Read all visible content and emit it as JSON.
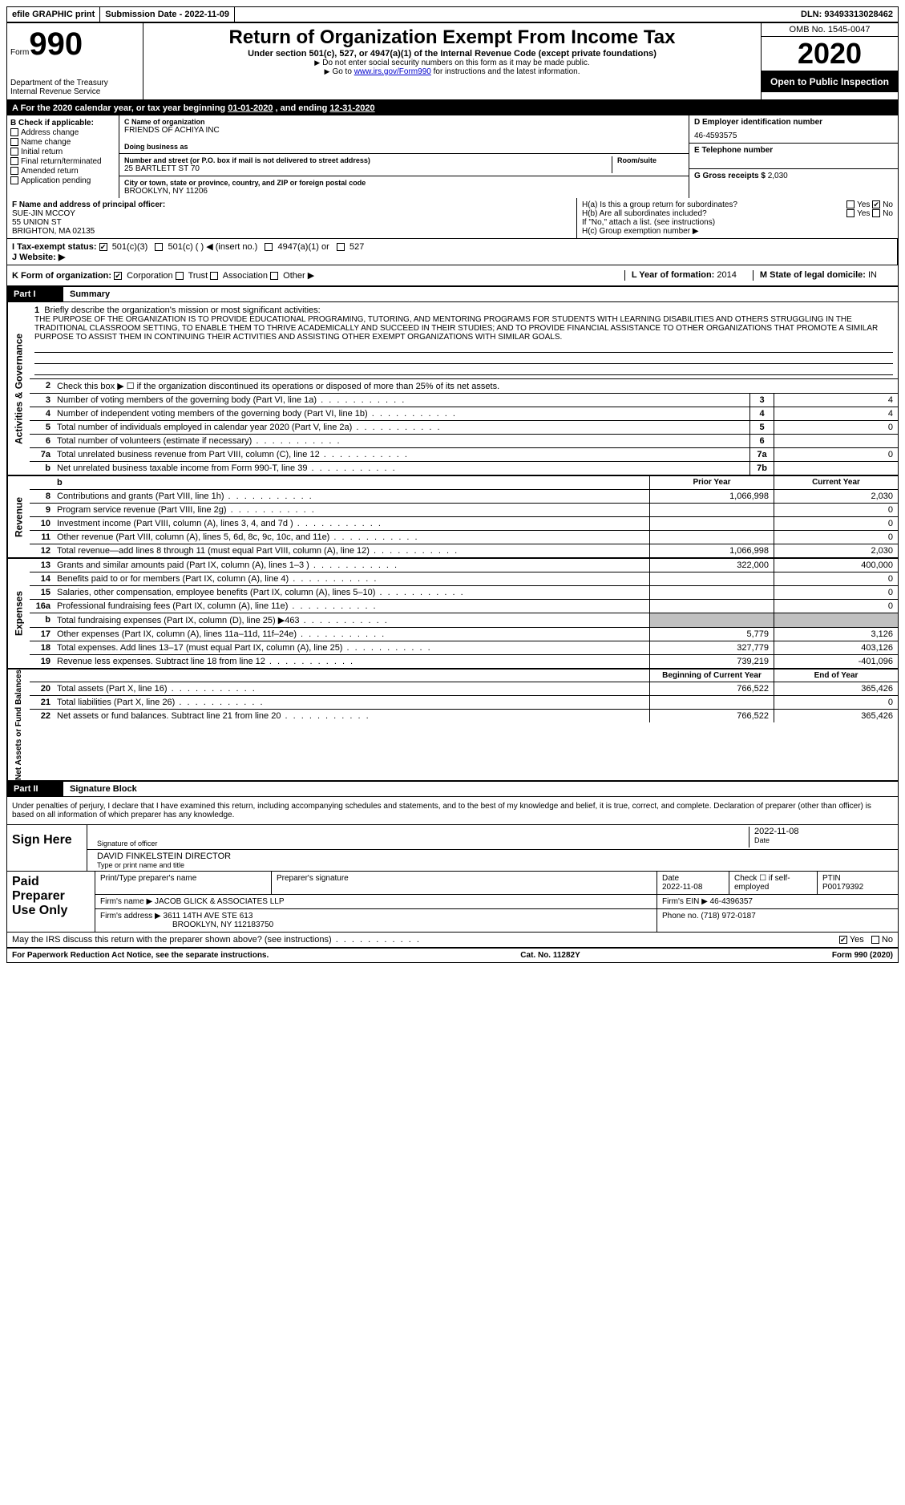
{
  "topbar": {
    "efile": "efile GRAPHIC print",
    "submission_label": "Submission Date - ",
    "submission_date": "2022-11-09",
    "dln_label": "DLN: ",
    "dln": "93493313028462"
  },
  "header": {
    "form_word": "Form",
    "form_num": "990",
    "dept": "Department of the Treasury\nInternal Revenue Service",
    "title": "Return of Organization Exempt From Income Tax",
    "subtitle": "Under section 501(c), 527, or 4947(a)(1) of the Internal Revenue Code (except private foundations)",
    "note1": "Do not enter social security numbers on this form as it may be made public.",
    "note2_pre": "Go to ",
    "note2_link": "www.irs.gov/Form990",
    "note2_post": " for instructions and the latest information.",
    "omb": "OMB No. 1545-0047",
    "year": "2020",
    "open": "Open to Public Inspection"
  },
  "period": {
    "a_label": "A For the 2020 calendar year, or tax year beginning ",
    "begin": "01-01-2020",
    "mid": " , and ending ",
    "end": "12-31-2020"
  },
  "boxB": {
    "label": "B Check if applicable:",
    "items": [
      "Address change",
      "Name change",
      "Initial return",
      "Final return/terminated",
      "Amended return",
      "Application pending"
    ]
  },
  "boxC": {
    "name_label": "C Name of organization",
    "name": "FRIENDS OF ACHIYA INC",
    "dba_label": "Doing business as",
    "street_label": "Number and street (or P.O. box if mail is not delivered to street address)",
    "street": "25 BARTLETT ST 70",
    "room_label": "Room/suite",
    "city_label": "City or town, state or province, country, and ZIP or foreign postal code",
    "city": "BROOKLYN, NY  11206"
  },
  "boxD": {
    "label": "D Employer identification number",
    "value": "46-4593575"
  },
  "boxE": {
    "label": "E Telephone number",
    "value": ""
  },
  "boxG": {
    "label": "G Gross receipts $",
    "value": "2,030"
  },
  "boxF": {
    "label": "F Name and address of principal officer:",
    "name": "SUE-JIN MCCOY",
    "addr1": "55 UNION ST",
    "addr2": "BRIGHTON, MA  02135"
  },
  "boxH": {
    "ha": "H(a) Is this a group return for subordinates?",
    "hb": "H(b) Are all subordinates included?",
    "hb_note": "If \"No,\" attach a list. (see instructions)",
    "hc": "H(c) Group exemption number ▶",
    "yes": "Yes",
    "no": "No"
  },
  "boxI": {
    "label": "I Tax-exempt status:",
    "opts": [
      "501(c)(3)",
      "501(c) (  ) ◀ (insert no.)",
      "4947(a)(1) or",
      "527"
    ]
  },
  "boxJ": {
    "label": "J Website: ▶",
    "value": ""
  },
  "boxK": {
    "label": "K Form of organization:",
    "opts": [
      "Corporation",
      "Trust",
      "Association",
      "Other ▶"
    ]
  },
  "boxL": {
    "label": "L Year of formation:",
    "value": "2014"
  },
  "boxM": {
    "label": "M State of legal domicile:",
    "value": "IN"
  },
  "partI": {
    "header": "Part I",
    "title": "Summary",
    "line1_label": "Briefly describe the organization's mission or most significant activities:",
    "mission": "THE PURPOSE OF THE ORGANIZATION IS TO PROVIDE EDUCATIONAL PROGRAMING, TUTORING, AND MENTORING PROGRAMS FOR STUDENTS WITH LEARNING DISABILITIES AND OTHERS STRUGGLING IN THE TRADITIONAL CLASSROOM SETTING, TO ENABLE THEM TO THRIVE ACADEMICALLY AND SUCCEED IN THEIR STUDIES; AND TO PROVIDE FINANCIAL ASSISTANCE TO OTHER ORGANIZATIONS THAT PROMOTE A SIMILAR PURPOSE TO ASSIST THEM IN CONTINUING THEIR ACTIVITIES AND ASSISTING OTHER EXEMPT ORGANIZATIONS WITH SIMILAR GOALS.",
    "line2": "Check this box ▶ ☐ if the organization discontinued its operations or disposed of more than 25% of its net assets.",
    "sections": {
      "activities": "Activities & Governance",
      "revenue": "Revenue",
      "expenses": "Expenses",
      "netassets": "Net Assets or Fund Balances"
    },
    "cols": {
      "prior": "Prior Year",
      "current": "Current Year",
      "begin": "Beginning of Current Year",
      "end": "End of Year"
    },
    "lines_gov": [
      {
        "n": "3",
        "t": "Number of voting members of the governing body (Part VI, line 1a)",
        "box": "3",
        "v": "4"
      },
      {
        "n": "4",
        "t": "Number of independent voting members of the governing body (Part VI, line 1b)",
        "box": "4",
        "v": "4"
      },
      {
        "n": "5",
        "t": "Total number of individuals employed in calendar year 2020 (Part V, line 2a)",
        "box": "5",
        "v": "0"
      },
      {
        "n": "6",
        "t": "Total number of volunteers (estimate if necessary)",
        "box": "6",
        "v": ""
      },
      {
        "n": "7a",
        "t": "Total unrelated business revenue from Part VIII, column (C), line 12",
        "box": "7a",
        "v": "0"
      },
      {
        "n": "b",
        "t": "Net unrelated business taxable income from Form 990-T, line 39",
        "box": "7b",
        "v": ""
      }
    ],
    "lines_rev": [
      {
        "n": "8",
        "t": "Contributions and grants (Part VIII, line 1h)",
        "p": "1,066,998",
        "c": "2,030"
      },
      {
        "n": "9",
        "t": "Program service revenue (Part VIII, line 2g)",
        "p": "",
        "c": "0"
      },
      {
        "n": "10",
        "t": "Investment income (Part VIII, column (A), lines 3, 4, and 7d )",
        "p": "",
        "c": "0"
      },
      {
        "n": "11",
        "t": "Other revenue (Part VIII, column (A), lines 5, 6d, 8c, 9c, 10c, and 11e)",
        "p": "",
        "c": "0"
      },
      {
        "n": "12",
        "t": "Total revenue—add lines 8 through 11 (must equal Part VIII, column (A), line 12)",
        "p": "1,066,998",
        "c": "2,030"
      }
    ],
    "lines_exp": [
      {
        "n": "13",
        "t": "Grants and similar amounts paid (Part IX, column (A), lines 1–3 )",
        "p": "322,000",
        "c": "400,000"
      },
      {
        "n": "14",
        "t": "Benefits paid to or for members (Part IX, column (A), line 4)",
        "p": "",
        "c": "0"
      },
      {
        "n": "15",
        "t": "Salaries, other compensation, employee benefits (Part IX, column (A), lines 5–10)",
        "p": "",
        "c": "0"
      },
      {
        "n": "16a",
        "t": "Professional fundraising fees (Part IX, column (A), line 11e)",
        "p": "",
        "c": "0"
      },
      {
        "n": "b",
        "t": "Total fundraising expenses (Part IX, column (D), line 25) ▶463",
        "p": "SHADE",
        "c": "SHADE"
      },
      {
        "n": "17",
        "t": "Other expenses (Part IX, column (A), lines 11a–11d, 11f–24e)",
        "p": "5,779",
        "c": "3,126"
      },
      {
        "n": "18",
        "t": "Total expenses. Add lines 13–17 (must equal Part IX, column (A), line 25)",
        "p": "327,779",
        "c": "403,126"
      },
      {
        "n": "19",
        "t": "Revenue less expenses. Subtract line 18 from line 12",
        "p": "739,219",
        "c": "-401,096"
      }
    ],
    "lines_net": [
      {
        "n": "20",
        "t": "Total assets (Part X, line 16)",
        "p": "766,522",
        "c": "365,426"
      },
      {
        "n": "21",
        "t": "Total liabilities (Part X, line 26)",
        "p": "",
        "c": "0"
      },
      {
        "n": "22",
        "t": "Net assets or fund balances. Subtract line 21 from line 20",
        "p": "766,522",
        "c": "365,426"
      }
    ]
  },
  "partII": {
    "header": "Part II",
    "title": "Signature Block",
    "declaration": "Under penalties of perjury, I declare that I have examined this return, including accompanying schedules and statements, and to the best of my knowledge and belief, it is true, correct, and complete. Declaration of preparer (other than officer) is based on all information of which preparer has any knowledge.",
    "sign_here": "Sign Here",
    "sig_officer": "Signature of officer",
    "sig_date": "2022-11-08",
    "date_label": "Date",
    "officer_name": "DAVID FINKELSTEIN DIRECTOR",
    "type_name": "Type or print name and title",
    "paid_prep": "Paid Preparer Use Only",
    "prep_name_label": "Print/Type preparer's name",
    "prep_sig_label": "Preparer's signature",
    "prep_date_label": "Date",
    "prep_date": "2022-11-08",
    "self_emp": "Check ☐ if self-employed",
    "ptin_label": "PTIN",
    "ptin": "P00179392",
    "firm_name_label": "Firm's name    ▶",
    "firm_name": "JACOB GLICK & ASSOCIATES LLP",
    "firm_ein_label": "Firm's EIN ▶",
    "firm_ein": "46-4396357",
    "firm_addr_label": "Firm's address ▶",
    "firm_addr1": "3611 14TH AVE STE 613",
    "firm_addr2": "BROOKLYN, NY  112183750",
    "phone_label": "Phone no.",
    "phone": "(718) 972-0187",
    "discuss": "May the IRS discuss this return with the preparer shown above? (see instructions)",
    "yes": "Yes",
    "no": "No"
  },
  "footer": {
    "paperwork": "For Paperwork Reduction Act Notice, see the separate instructions.",
    "cat": "Cat. No. 11282Y",
    "formref": "Form 990 (2020)"
  }
}
